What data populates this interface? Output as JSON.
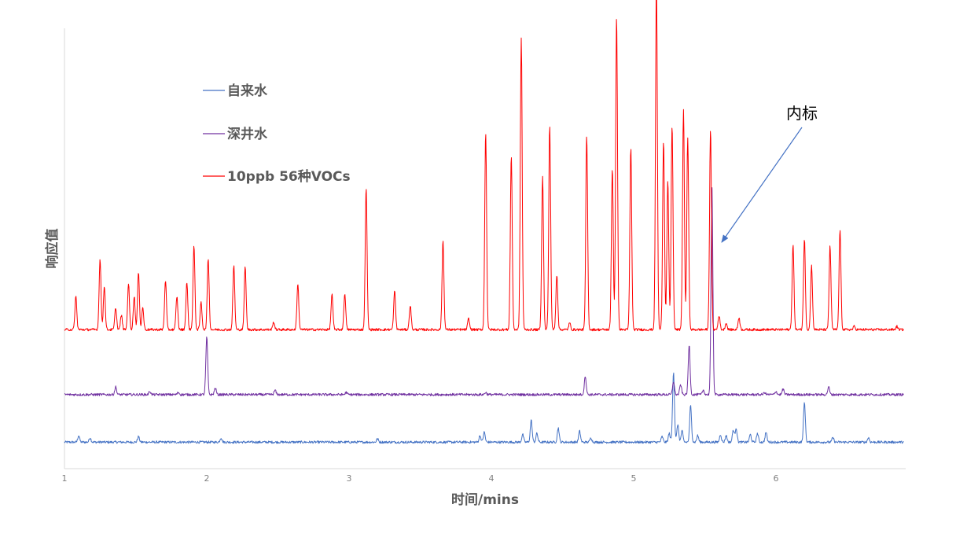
{
  "chart_data": {
    "type": "line",
    "xlabel": "时间/mins",
    "ylabel": "响应值",
    "xlim": [
      1,
      6.9
    ],
    "x_ticks": [
      1,
      2,
      3,
      4,
      5,
      6
    ],
    "y_axis_ticks_shown": false,
    "grid": false,
    "legend_position": "upper-left",
    "series": [
      {
        "name": "自来水",
        "color": "#4472C4",
        "baseline": 0.28,
        "peaks": [
          [
            1.1,
            0.6
          ],
          [
            1.18,
            0.4
          ],
          [
            1.52,
            0.5
          ],
          [
            2.1,
            0.4
          ],
          [
            3.2,
            0.3
          ],
          [
            3.92,
            0.6
          ],
          [
            3.95,
            0.9
          ],
          [
            4.22,
            0.7
          ],
          [
            4.28,
            2.0
          ],
          [
            4.32,
            0.8
          ],
          [
            4.47,
            1.3
          ],
          [
            4.62,
            1.0
          ],
          [
            4.7,
            0.4
          ],
          [
            5.2,
            0.5
          ],
          [
            5.25,
            0.8
          ],
          [
            5.28,
            6.4
          ],
          [
            5.31,
            1.6
          ],
          [
            5.34,
            1.0
          ],
          [
            5.4,
            3.3
          ],
          [
            5.45,
            0.6
          ],
          [
            5.61,
            0.7
          ],
          [
            5.65,
            0.6
          ],
          [
            5.7,
            1.1
          ],
          [
            5.72,
            1.3
          ],
          [
            5.82,
            0.7
          ],
          [
            5.87,
            0.8
          ],
          [
            5.93,
            0.9
          ],
          [
            6.2,
            3.6
          ],
          [
            6.4,
            0.4
          ],
          [
            6.65,
            0.4
          ]
        ]
      },
      {
        "name": "深井水",
        "color": "#7030A0",
        "baseline": 1.3,
        "peaks": [
          [
            1.36,
            0.7
          ],
          [
            1.6,
            0.3
          ],
          [
            1.8,
            0.2
          ],
          [
            2.0,
            5.2
          ],
          [
            2.06,
            0.6
          ],
          [
            2.48,
            0.4
          ],
          [
            2.98,
            0.2
          ],
          [
            3.96,
            0.2
          ],
          [
            4.66,
            1.7
          ],
          [
            5.28,
            1.2
          ],
          [
            5.33,
            0.9
          ],
          [
            5.39,
            4.5
          ],
          [
            5.49,
            0.4
          ],
          [
            5.55,
            19.0
          ],
          [
            5.92,
            0.2
          ],
          [
            6.0,
            0.3
          ],
          [
            6.05,
            0.5
          ],
          [
            6.37,
            0.7
          ]
        ]
      },
      {
        "name": "10ppb 56种VOCs",
        "color": "#FF0000",
        "baseline": 3.0,
        "peaks": [
          [
            1.08,
            3.0
          ],
          [
            1.25,
            6.4
          ],
          [
            1.28,
            4.0
          ],
          [
            1.36,
            2.0
          ],
          [
            1.4,
            1.3
          ],
          [
            1.45,
            4.2
          ],
          [
            1.49,
            3.0
          ],
          [
            1.52,
            5.2
          ],
          [
            1.55,
            2.0
          ],
          [
            1.71,
            4.5
          ],
          [
            1.79,
            3.0
          ],
          [
            1.86,
            4.3
          ],
          [
            1.91,
            7.6
          ],
          [
            1.96,
            2.5
          ],
          [
            2.01,
            6.5
          ],
          [
            2.19,
            5.8
          ],
          [
            2.27,
            5.7
          ],
          [
            2.47,
            0.7
          ],
          [
            2.64,
            4.1
          ],
          [
            2.88,
            3.2
          ],
          [
            2.97,
            3.3
          ],
          [
            3.12,
            13.0
          ],
          [
            3.32,
            3.5
          ],
          [
            3.43,
            2.2
          ],
          [
            3.66,
            8.1
          ],
          [
            3.84,
            1.0
          ],
          [
            3.96,
            18.0
          ],
          [
            4.14,
            15.8
          ],
          [
            4.21,
            26.5
          ],
          [
            4.36,
            14.0
          ],
          [
            4.41,
            18.6
          ],
          [
            4.46,
            5.0
          ],
          [
            4.55,
            0.6
          ],
          [
            4.67,
            17.6
          ],
          [
            4.85,
            14.7
          ],
          [
            4.88,
            28.5
          ],
          [
            4.98,
            16.5
          ],
          [
            5.16,
            31.9
          ],
          [
            5.21,
            17.2
          ],
          [
            5.24,
            13.5
          ],
          [
            5.27,
            18.6
          ],
          [
            5.35,
            20.0
          ],
          [
            5.38,
            17.5
          ],
          [
            5.54,
            18.3
          ],
          [
            5.6,
            1.3
          ],
          [
            5.65,
            0.6
          ],
          [
            5.74,
            1.1
          ],
          [
            6.12,
            7.7
          ],
          [
            6.2,
            8.2
          ],
          [
            6.25,
            5.8
          ],
          [
            6.38,
            7.6
          ],
          [
            6.45,
            9.1
          ],
          [
            6.55,
            0.3
          ],
          [
            6.85,
            0.3
          ]
        ]
      }
    ],
    "annotations": [
      {
        "text": "内标",
        "target_x": 5.55
      }
    ]
  }
}
